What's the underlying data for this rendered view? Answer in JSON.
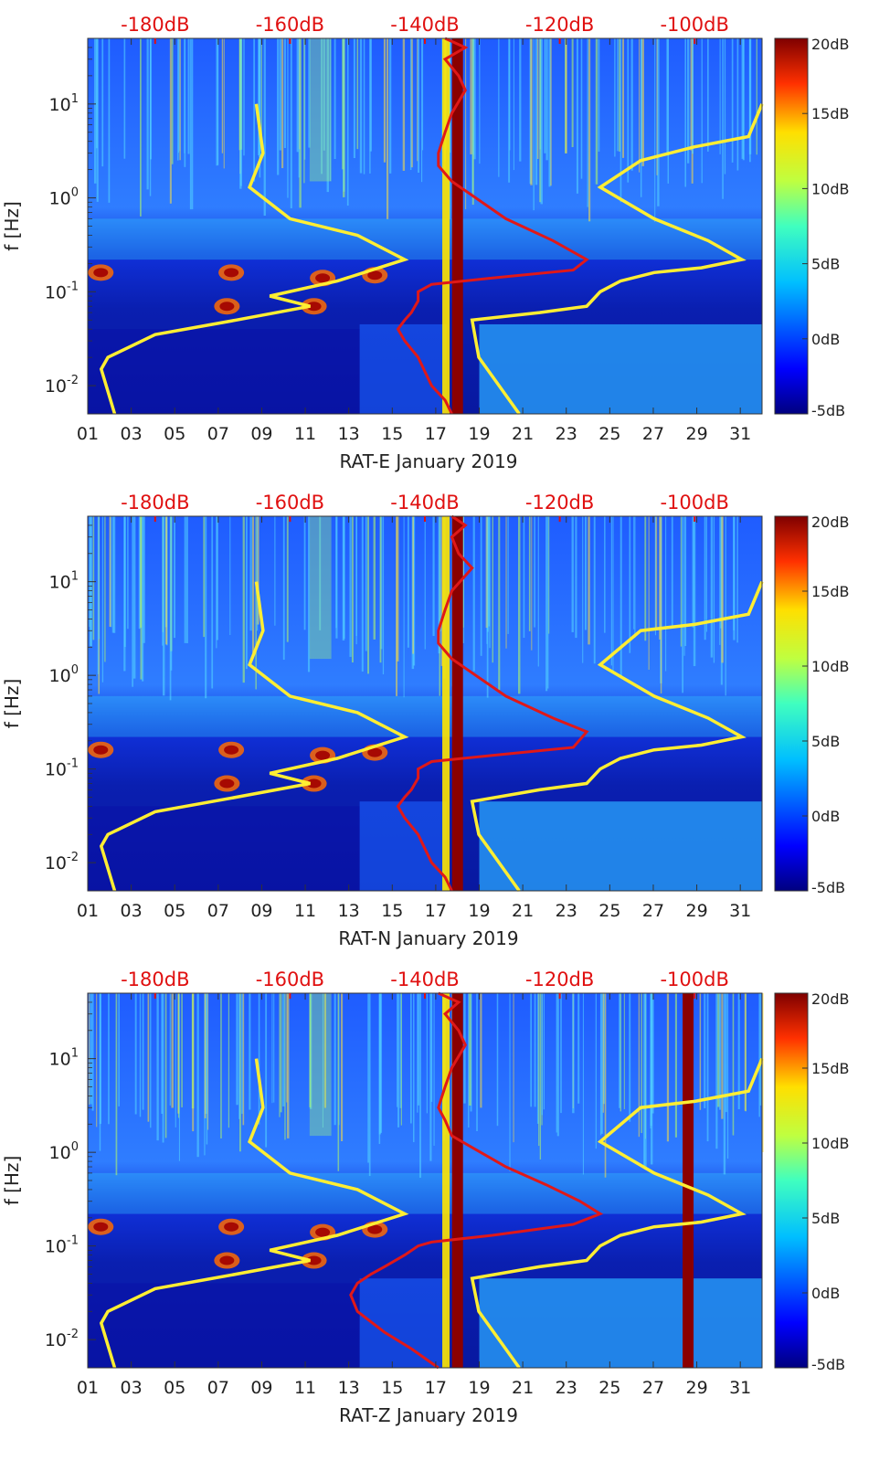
{
  "chart_data": [
    {
      "type": "heatmap",
      "panel": "RAT-E",
      "xlabel": "RAT-E January 2019",
      "ylabel": "f [Hz]",
      "x_ticks": [
        "01",
        "03",
        "05",
        "07",
        "09",
        "11",
        "13",
        "15",
        "17",
        "19",
        "21",
        "23",
        "25",
        "27",
        "29",
        "31"
      ],
      "x_range_days": [
        1,
        32
      ],
      "y_ticks": [
        {
          "v": 0.01,
          "b": "10",
          "e": "-2"
        },
        {
          "v": 0.1,
          "b": "10",
          "e": "-1"
        },
        {
          "v": 1,
          "b": "10",
          "e": "0"
        },
        {
          "v": 10,
          "b": "10",
          "e": "1"
        }
      ],
      "y_range_hz": [
        0.005,
        50
      ],
      "y_scale": "log",
      "top_axis_ticks": [
        "-180dB",
        "-160dB",
        "-140dB",
        "-120dB",
        "-100dB"
      ],
      "top_axis_range_db": [
        -190,
        -90
      ],
      "colorbar": {
        "ticks": [
          "20dB",
          "15dB",
          "10dB",
          "5dB",
          "0dB",
          "-5dB"
        ],
        "range_db": [
          -5,
          20
        ],
        "colormap": "jet"
      },
      "red_series": [
        [
          -137,
          50
        ],
        [
          -134,
          40
        ],
        [
          -137,
          30
        ],
        [
          -135,
          20
        ],
        [
          -134,
          14
        ],
        [
          -136,
          8
        ],
        [
          -137,
          5
        ],
        [
          -138,
          3
        ],
        [
          -138,
          2.2
        ],
        [
          -136,
          1.5
        ],
        [
          -128,
          0.6
        ],
        [
          -121,
          0.35
        ],
        [
          -116,
          0.22
        ],
        [
          -118,
          0.17
        ],
        [
          -130,
          0.14
        ],
        [
          -139,
          0.12
        ],
        [
          -141,
          0.1
        ],
        [
          -141,
          0.08
        ],
        [
          -142,
          0.06
        ],
        [
          -143,
          0.05
        ],
        [
          -144,
          0.04
        ],
        [
          -143,
          0.03
        ],
        [
          -141,
          0.02
        ],
        [
          -139,
          0.01
        ],
        [
          -137,
          0.007
        ],
        [
          -136,
          0.005
        ]
      ],
      "yellow_series": [
        {
          "points": [
            [
              -165,
              10
            ],
            [
              -164,
              3
            ],
            [
              -166,
              1.3
            ],
            [
              -160,
              0.6
            ],
            [
              -150,
              0.4
            ],
            [
              -143,
              0.22
            ],
            [
              -153,
              0.13
            ],
            [
              -163,
              0.09
            ],
            [
              -157,
              0.07
            ],
            [
              -168,
              0.05
            ],
            [
              -180,
              0.035
            ],
            [
              -187,
              0.02
            ],
            [
              -188,
              0.015
            ],
            [
              -186,
              0.005
            ]
          ]
        },
        {
          "points": [
            [
              -90,
              10
            ],
            [
              -92,
              4.5
            ],
            [
              -100,
              3.5
            ],
            [
              -108,
              2.5
            ],
            [
              -114,
              1.3
            ],
            [
              -106,
              0.6
            ],
            [
              -98,
              0.35
            ],
            [
              -93,
              0.22
            ],
            [
              -99,
              0.18
            ],
            [
              -106,
              0.16
            ],
            [
              -111,
              0.13
            ],
            [
              -114,
              0.1
            ],
            [
              -116,
              0.07
            ],
            [
              -123,
              0.06
            ],
            [
              -133,
              0.05
            ],
            [
              -132,
              0.02
            ],
            [
              -126,
              0.005
            ]
          ]
        }
      ],
      "dark_red_columns_days": [
        18
      ]
    },
    {
      "type": "heatmap",
      "panel": "RAT-N",
      "xlabel": "RAT-N January 2019",
      "ylabel": "f [Hz]",
      "x_ticks": [
        "01",
        "03",
        "05",
        "07",
        "09",
        "11",
        "13",
        "15",
        "17",
        "19",
        "21",
        "23",
        "25",
        "27",
        "29",
        "31"
      ],
      "x_range_days": [
        1,
        32
      ],
      "y_ticks": [
        {
          "v": 0.01,
          "b": "10",
          "e": "-2"
        },
        {
          "v": 0.1,
          "b": "10",
          "e": "-1"
        },
        {
          "v": 1,
          "b": "10",
          "e": "0"
        },
        {
          "v": 10,
          "b": "10",
          "e": "1"
        }
      ],
      "y_range_hz": [
        0.005,
        50
      ],
      "y_scale": "log",
      "top_axis_ticks": [
        "-180dB",
        "-160dB",
        "-140dB",
        "-120dB",
        "-100dB"
      ],
      "top_axis_range_db": [
        -190,
        -90
      ],
      "colorbar": {
        "ticks": [
          "20dB",
          "15dB",
          "10dB",
          "5dB",
          "0dB",
          "-5dB"
        ],
        "range_db": [
          -5,
          20
        ],
        "colormap": "jet"
      },
      "red_series": [
        [
          -136,
          50
        ],
        [
          -134,
          40
        ],
        [
          -136,
          30
        ],
        [
          -135,
          20
        ],
        [
          -133,
          14
        ],
        [
          -136,
          8
        ],
        [
          -137,
          5
        ],
        [
          -138,
          3
        ],
        [
          -138,
          2.2
        ],
        [
          -136,
          1.5
        ],
        [
          -128,
          0.6
        ],
        [
          -121,
          0.35
        ],
        [
          -116,
          0.25
        ],
        [
          -118,
          0.17
        ],
        [
          -130,
          0.14
        ],
        [
          -139,
          0.12
        ],
        [
          -141,
          0.1
        ],
        [
          -141,
          0.08
        ],
        [
          -142,
          0.06
        ],
        [
          -143,
          0.05
        ],
        [
          -144,
          0.04
        ],
        [
          -143,
          0.03
        ],
        [
          -141,
          0.02
        ],
        [
          -139,
          0.01
        ],
        [
          -137,
          0.007
        ],
        [
          -136,
          0.005
        ]
      ],
      "yellow_series": [
        {
          "points": [
            [
              -165,
              10
            ],
            [
              -164,
              3
            ],
            [
              -166,
              1.3
            ],
            [
              -160,
              0.6
            ],
            [
              -150,
              0.4
            ],
            [
              -143,
              0.22
            ],
            [
              -153,
              0.13
            ],
            [
              -163,
              0.09
            ],
            [
              -157,
              0.07
            ],
            [
              -168,
              0.05
            ],
            [
              -180,
              0.035
            ],
            [
              -187,
              0.02
            ],
            [
              -188,
              0.015
            ],
            [
              -186,
              0.005
            ]
          ]
        },
        {
          "points": [
            [
              -90,
              10
            ],
            [
              -92,
              4.5
            ],
            [
              -100,
              3.5
            ],
            [
              -108,
              3
            ],
            [
              -114,
              1.3
            ],
            [
              -106,
              0.6
            ],
            [
              -98,
              0.35
            ],
            [
              -93,
              0.22
            ],
            [
              -99,
              0.18
            ],
            [
              -106,
              0.16
            ],
            [
              -111,
              0.13
            ],
            [
              -114,
              0.1
            ],
            [
              -116,
              0.07
            ],
            [
              -123,
              0.06
            ],
            [
              -133,
              0.045
            ],
            [
              -132,
              0.02
            ],
            [
              -126,
              0.005
            ]
          ]
        }
      ],
      "dark_red_columns_days": [
        18
      ]
    },
    {
      "type": "heatmap",
      "panel": "RAT-Z",
      "xlabel": "RAT-Z January 2019",
      "ylabel": "f [Hz]",
      "x_ticks": [
        "01",
        "03",
        "05",
        "07",
        "09",
        "11",
        "13",
        "15",
        "17",
        "19",
        "21",
        "23",
        "25",
        "27",
        "29",
        "31"
      ],
      "x_range_days": [
        1,
        32
      ],
      "y_ticks": [
        {
          "v": 0.01,
          "b": "10",
          "e": "-2"
        },
        {
          "v": 0.1,
          "b": "10",
          "e": "-1"
        },
        {
          "v": 1,
          "b": "10",
          "e": "0"
        },
        {
          "v": 10,
          "b": "10",
          "e": "1"
        }
      ],
      "y_range_hz": [
        0.005,
        50
      ],
      "y_scale": "log",
      "top_axis_ticks": [
        "-180dB",
        "-160dB",
        "-140dB",
        "-120dB",
        "-100dB"
      ],
      "top_axis_range_db": [
        -190,
        -90
      ],
      "colorbar": {
        "ticks": [
          "20dB",
          "15dB",
          "10dB",
          "5dB",
          "0dB",
          "-5dB"
        ],
        "range_db": [
          -5,
          20
        ],
        "colormap": "jet"
      },
      "red_series": [
        [
          -138,
          50
        ],
        [
          -135,
          40
        ],
        [
          -137,
          30
        ],
        [
          -135,
          20
        ],
        [
          -134,
          14
        ],
        [
          -136,
          8
        ],
        [
          -137,
          5
        ],
        [
          -138,
          3
        ],
        [
          -137,
          2.2
        ],
        [
          -136,
          1.5
        ],
        [
          -128,
          0.7
        ],
        [
          -122,
          0.45
        ],
        [
          -117,
          0.3
        ],
        [
          -114,
          0.22
        ],
        [
          -118,
          0.17
        ],
        [
          -130,
          0.13
        ],
        [
          -139,
          0.11
        ],
        [
          -141,
          0.1
        ],
        [
          -143,
          0.08
        ],
        [
          -146,
          0.06
        ],
        [
          -148,
          0.05
        ],
        [
          -150,
          0.04
        ],
        [
          -151,
          0.03
        ],
        [
          -150,
          0.02
        ],
        [
          -146,
          0.012
        ],
        [
          -142,
          0.008
        ],
        [
          -138,
          0.005
        ]
      ],
      "yellow_series": [
        {
          "points": [
            [
              -165,
              10
            ],
            [
              -164,
              3
            ],
            [
              -166,
              1.3
            ],
            [
              -160,
              0.6
            ],
            [
              -150,
              0.4
            ],
            [
              -143,
              0.22
            ],
            [
              -153,
              0.13
            ],
            [
              -163,
              0.09
            ],
            [
              -157,
              0.07
            ],
            [
              -168,
              0.05
            ],
            [
              -180,
              0.035
            ],
            [
              -187,
              0.02
            ],
            [
              -188,
              0.015
            ],
            [
              -186,
              0.005
            ]
          ]
        },
        {
          "points": [
            [
              -90,
              10
            ],
            [
              -92,
              4.5
            ],
            [
              -100,
              3.5
            ],
            [
              -108,
              3
            ],
            [
              -114,
              1.3
            ],
            [
              -106,
              0.6
            ],
            [
              -98,
              0.35
            ],
            [
              -93,
              0.22
            ],
            [
              -99,
              0.18
            ],
            [
              -106,
              0.16
            ],
            [
              -111,
              0.13
            ],
            [
              -114,
              0.1
            ],
            [
              -116,
              0.07
            ],
            [
              -123,
              0.06
            ],
            [
              -133,
              0.045
            ],
            [
              -132,
              0.02
            ],
            [
              -126,
              0.005
            ]
          ]
        }
      ],
      "dark_red_columns_days": [
        18,
        28.6
      ]
    }
  ]
}
